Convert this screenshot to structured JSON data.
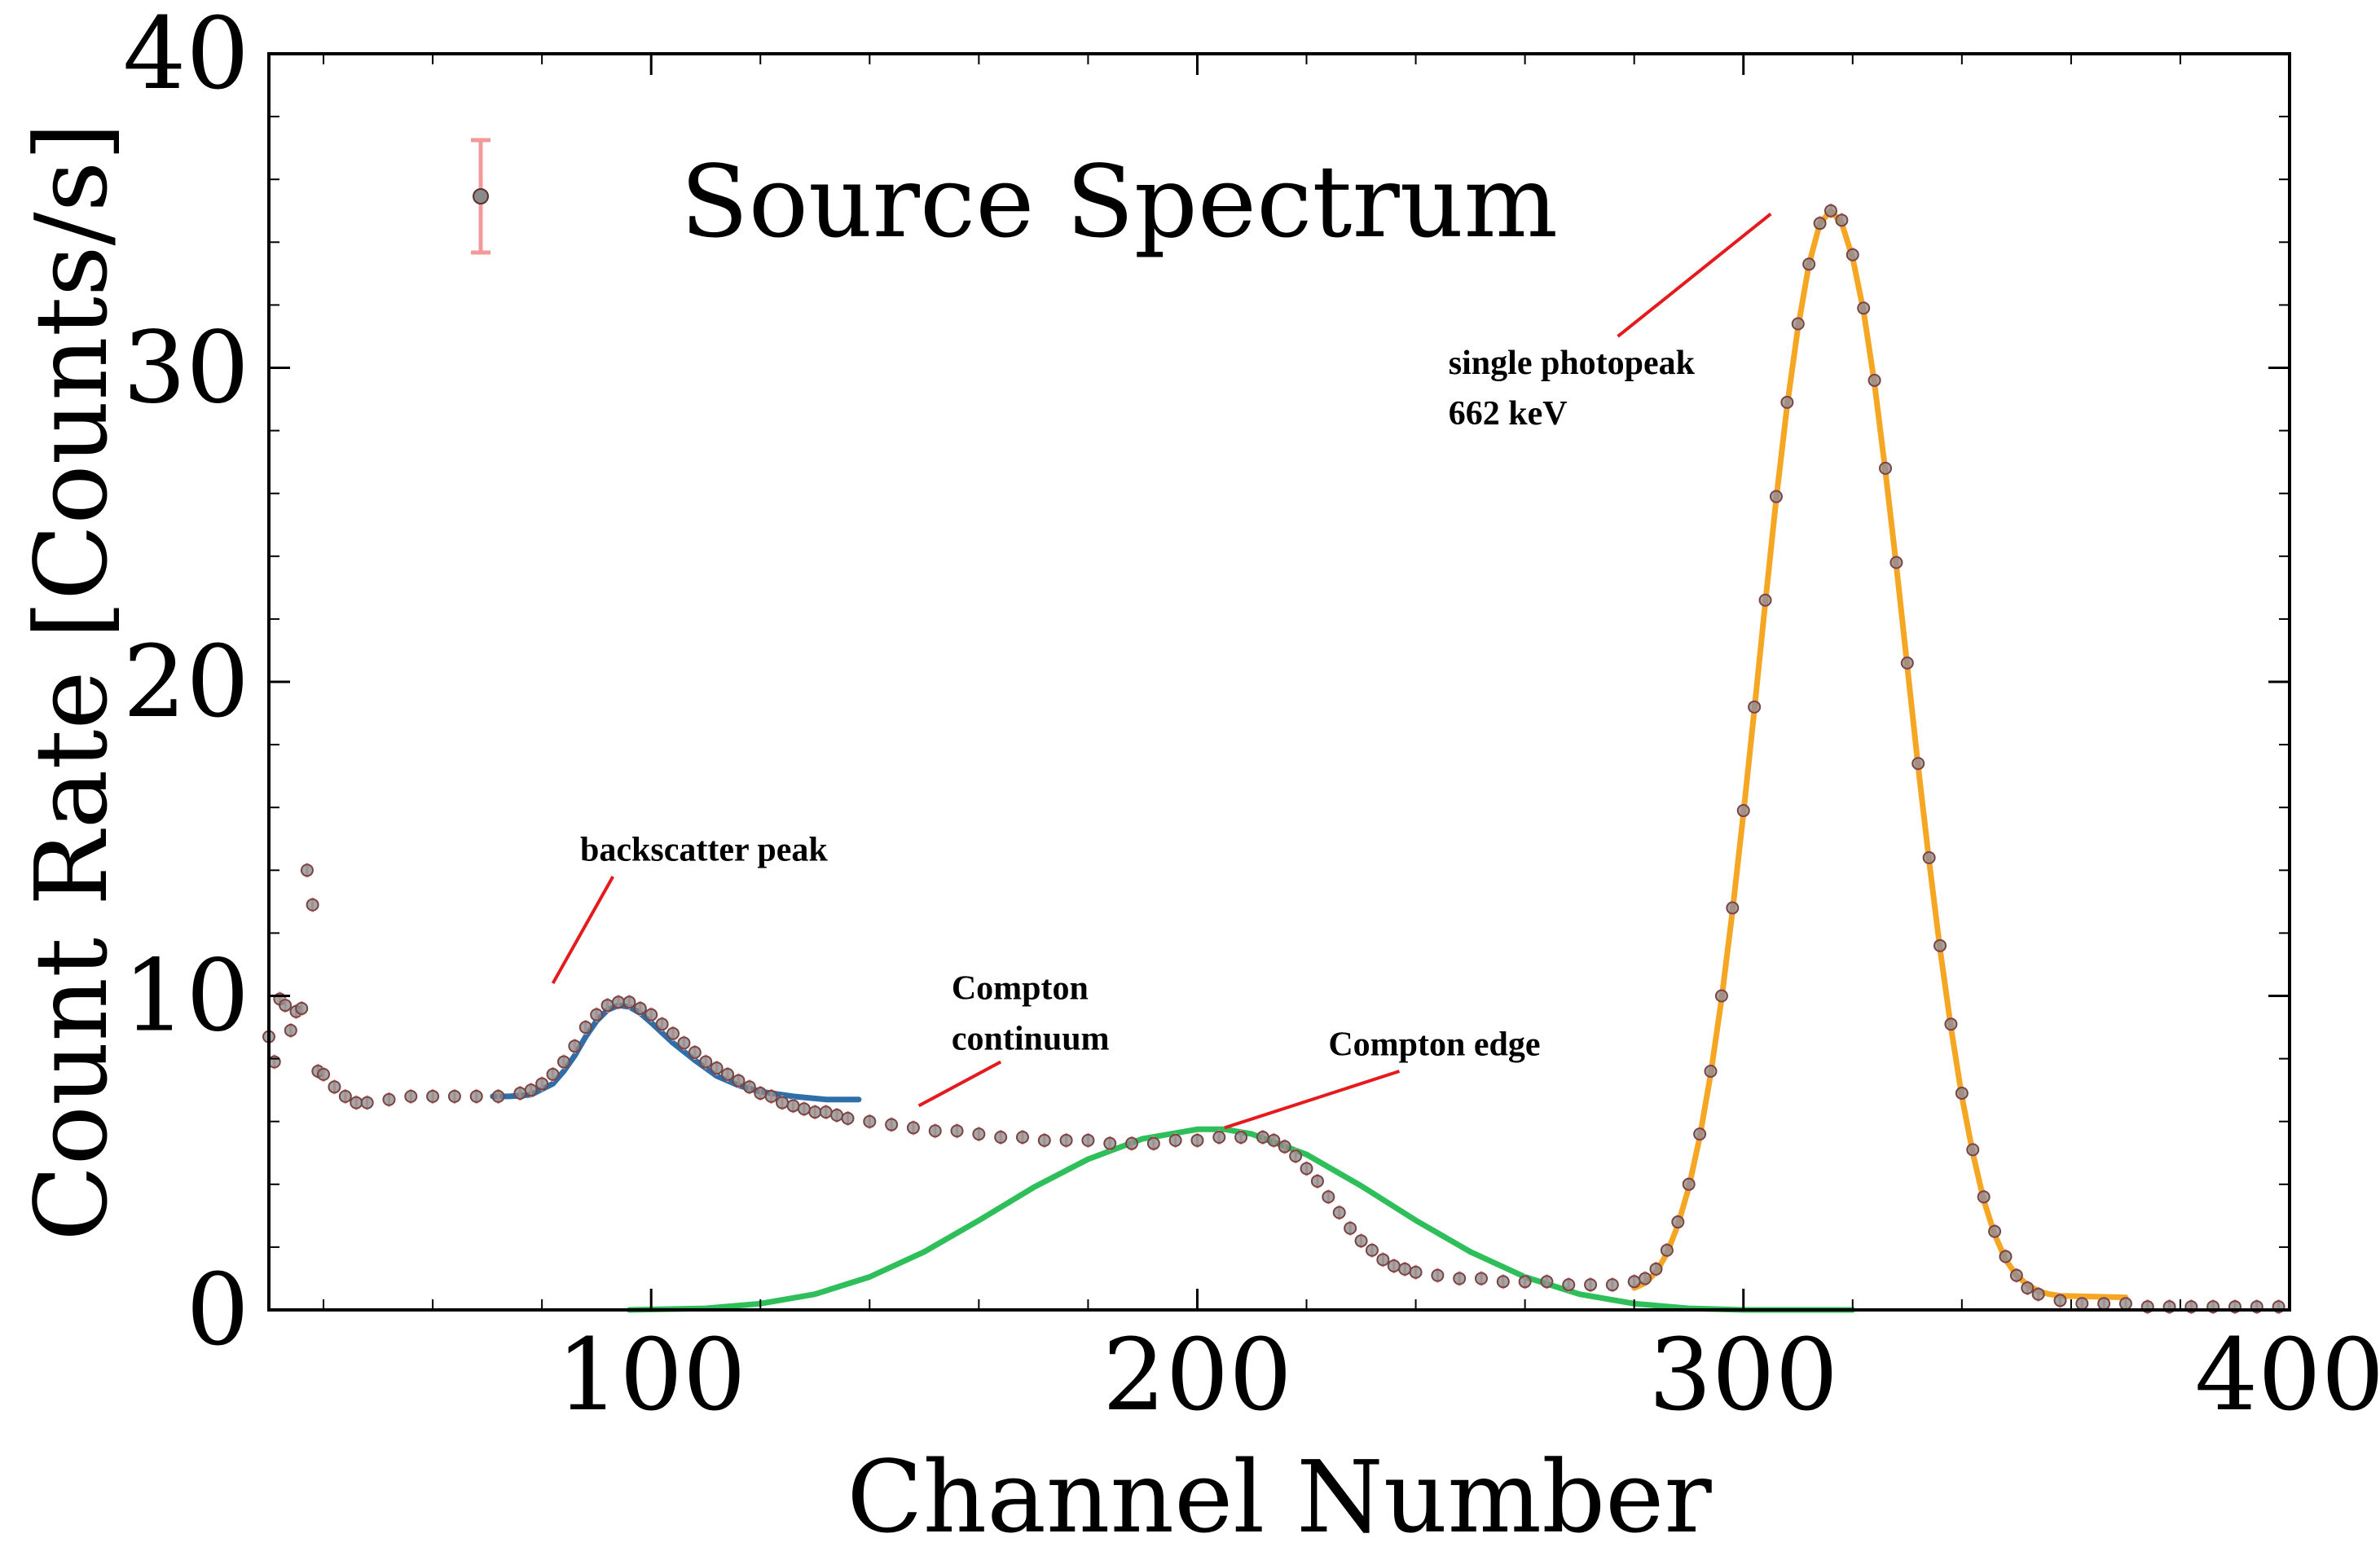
{
  "chart_data": {
    "type": "scatter",
    "xlabel": "Channel Number",
    "ylabel": "Count Rate [Counts/s]",
    "xlim": [
      30,
      400
    ],
    "ylim": [
      0,
      40
    ],
    "xticks": [
      100,
      200,
      300,
      400
    ],
    "yticks": [
      0,
      10,
      20,
      30,
      40
    ],
    "grid": false,
    "legend": {
      "position": "top-left",
      "entries": [
        "Source Spectrum"
      ]
    },
    "series": [
      {
        "name": "Source Spectrum",
        "kind": "errorbar-points",
        "marker_color": "#7a4444",
        "errorbar_color": "#f29a9a",
        "points": [
          [
            30,
            8.7
          ],
          [
            31,
            7.9
          ],
          [
            32,
            9.9
          ],
          [
            33,
            9.7
          ],
          [
            34,
            8.9
          ],
          [
            35,
            9.5
          ],
          [
            36,
            9.6
          ],
          [
            37,
            14.0
          ],
          [
            38,
            12.9
          ],
          [
            39,
            7.6
          ],
          [
            40,
            7.5
          ],
          [
            42,
            7.1
          ],
          [
            44,
            6.8
          ],
          [
            46,
            6.6
          ],
          [
            48,
            6.6
          ],
          [
            52,
            6.7
          ],
          [
            56,
            6.8
          ],
          [
            60,
            6.8
          ],
          [
            64,
            6.8
          ],
          [
            68,
            6.8
          ],
          [
            72,
            6.8
          ],
          [
            76,
            6.9
          ],
          [
            78,
            7.0
          ],
          [
            80,
            7.2
          ],
          [
            82,
            7.5
          ],
          [
            84,
            7.9
          ],
          [
            86,
            8.4
          ],
          [
            88,
            9.0
          ],
          [
            90,
            9.4
          ],
          [
            92,
            9.7
          ],
          [
            94,
            9.8
          ],
          [
            96,
            9.8
          ],
          [
            98,
            9.6
          ],
          [
            100,
            9.4
          ],
          [
            102,
            9.1
          ],
          [
            104,
            8.8
          ],
          [
            106,
            8.5
          ],
          [
            108,
            8.2
          ],
          [
            110,
            7.9
          ],
          [
            112,
            7.7
          ],
          [
            114,
            7.5
          ],
          [
            116,
            7.3
          ],
          [
            118,
            7.1
          ],
          [
            120,
            6.9
          ],
          [
            122,
            6.8
          ],
          [
            124,
            6.6
          ],
          [
            126,
            6.5
          ],
          [
            128,
            6.4
          ],
          [
            130,
            6.3
          ],
          [
            132,
            6.3
          ],
          [
            134,
            6.2
          ],
          [
            136,
            6.1
          ],
          [
            140,
            6.0
          ],
          [
            144,
            5.9
          ],
          [
            148,
            5.8
          ],
          [
            152,
            5.7
          ],
          [
            156,
            5.7
          ],
          [
            160,
            5.6
          ],
          [
            164,
            5.5
          ],
          [
            168,
            5.5
          ],
          [
            172,
            5.4
          ],
          [
            176,
            5.4
          ],
          [
            180,
            5.4
          ],
          [
            184,
            5.3
          ],
          [
            188,
            5.3
          ],
          [
            192,
            5.3
          ],
          [
            196,
            5.4
          ],
          [
            200,
            5.4
          ],
          [
            204,
            5.5
          ],
          [
            208,
            5.5
          ],
          [
            212,
            5.5
          ],
          [
            214,
            5.4
          ],
          [
            216,
            5.2
          ],
          [
            218,
            4.9
          ],
          [
            220,
            4.5
          ],
          [
            222,
            4.1
          ],
          [
            224,
            3.6
          ],
          [
            226,
            3.1
          ],
          [
            228,
            2.6
          ],
          [
            230,
            2.2
          ],
          [
            232,
            1.9
          ],
          [
            234,
            1.6
          ],
          [
            236,
            1.4
          ],
          [
            238,
            1.3
          ],
          [
            240,
            1.2
          ],
          [
            244,
            1.1
          ],
          [
            248,
            1.0
          ],
          [
            252,
            1.0
          ],
          [
            256,
            0.9
          ],
          [
            260,
            0.9
          ],
          [
            264,
            0.9
          ],
          [
            268,
            0.8
          ],
          [
            272,
            0.8
          ],
          [
            276,
            0.8
          ],
          [
            280,
            0.9
          ],
          [
            282,
            1.0
          ],
          [
            284,
            1.3
          ],
          [
            286,
            1.9
          ],
          [
            288,
            2.8
          ],
          [
            290,
            4.0
          ],
          [
            292,
            5.6
          ],
          [
            294,
            7.6
          ],
          [
            296,
            10.0
          ],
          [
            298,
            12.8
          ],
          [
            300,
            15.9
          ],
          [
            302,
            19.2
          ],
          [
            304,
            22.6
          ],
          [
            306,
            25.9
          ],
          [
            308,
            28.9
          ],
          [
            310,
            31.4
          ],
          [
            312,
            33.3
          ],
          [
            314,
            34.6
          ],
          [
            316,
            35.0
          ],
          [
            318,
            34.7
          ],
          [
            320,
            33.6
          ],
          [
            322,
            31.9
          ],
          [
            324,
            29.6
          ],
          [
            326,
            26.8
          ],
          [
            328,
            23.8
          ],
          [
            330,
            20.6
          ],
          [
            332,
            17.4
          ],
          [
            334,
            14.4
          ],
          [
            336,
            11.6
          ],
          [
            338,
            9.1
          ],
          [
            340,
            6.9
          ],
          [
            342,
            5.1
          ],
          [
            344,
            3.6
          ],
          [
            346,
            2.5
          ],
          [
            348,
            1.7
          ],
          [
            350,
            1.1
          ],
          [
            352,
            0.7
          ],
          [
            354,
            0.5
          ],
          [
            358,
            0.3
          ],
          [
            362,
            0.2
          ],
          [
            366,
            0.2
          ],
          [
            370,
            0.2
          ],
          [
            374,
            0.1
          ],
          [
            378,
            0.1
          ],
          [
            382,
            0.1
          ],
          [
            386,
            0.1
          ],
          [
            390,
            0.1
          ],
          [
            394,
            0.1
          ],
          [
            398,
            0.1
          ]
        ]
      },
      {
        "kind": "fit-line",
        "color": "#2f6ea8",
        "points": [
          [
            71,
            6.8
          ],
          [
            74,
            6.8
          ],
          [
            78,
            6.85
          ],
          [
            82,
            7.2
          ],
          [
            84,
            7.6
          ],
          [
            86,
            8.1
          ],
          [
            88,
            8.7
          ],
          [
            90,
            9.2
          ],
          [
            92,
            9.55
          ],
          [
            94,
            9.7
          ],
          [
            96,
            9.65
          ],
          [
            98,
            9.45
          ],
          [
            100,
            9.15
          ],
          [
            104,
            8.5
          ],
          [
            108,
            7.95
          ],
          [
            112,
            7.45
          ],
          [
            116,
            7.15
          ],
          [
            120,
            6.95
          ],
          [
            126,
            6.8
          ],
          [
            132,
            6.7
          ],
          [
            138,
            6.7
          ]
        ]
      },
      {
        "kind": "fit-line",
        "color": "#2fbf5a",
        "points": [
          [
            96,
            0.0
          ],
          [
            110,
            0.05
          ],
          [
            120,
            0.2
          ],
          [
            130,
            0.5
          ],
          [
            140,
            1.05
          ],
          [
            150,
            1.85
          ],
          [
            160,
            2.85
          ],
          [
            170,
            3.9
          ],
          [
            180,
            4.8
          ],
          [
            190,
            5.45
          ],
          [
            200,
            5.75
          ],
          [
            205,
            5.75
          ],
          [
            210,
            5.6
          ],
          [
            220,
            4.95
          ],
          [
            230,
            3.95
          ],
          [
            240,
            2.85
          ],
          [
            250,
            1.85
          ],
          [
            260,
            1.05
          ],
          [
            270,
            0.5
          ],
          [
            280,
            0.2
          ],
          [
            290,
            0.05
          ],
          [
            300,
            0.0
          ],
          [
            320,
            0.0
          ]
        ]
      },
      {
        "kind": "fit-line",
        "color": "#f5a623",
        "points": [
          [
            280,
            0.7
          ],
          [
            282,
            0.85
          ],
          [
            284,
            1.2
          ],
          [
            286,
            1.8
          ],
          [
            288,
            2.7
          ],
          [
            290,
            3.9
          ],
          [
            292,
            5.5
          ],
          [
            294,
            7.5
          ],
          [
            296,
            9.9
          ],
          [
            298,
            12.7
          ],
          [
            300,
            15.8
          ],
          [
            302,
            19.1
          ],
          [
            304,
            22.5
          ],
          [
            306,
            25.8
          ],
          [
            308,
            28.8
          ],
          [
            310,
            31.3
          ],
          [
            312,
            33.3
          ],
          [
            314,
            34.6
          ],
          [
            316,
            35.0
          ],
          [
            318,
            34.6
          ],
          [
            320,
            33.5
          ],
          [
            322,
            31.8
          ],
          [
            324,
            29.5
          ],
          [
            326,
            26.7
          ],
          [
            328,
            23.7
          ],
          [
            330,
            20.5
          ],
          [
            332,
            17.3
          ],
          [
            334,
            14.3
          ],
          [
            336,
            11.5
          ],
          [
            338,
            9.0
          ],
          [
            340,
            6.8
          ],
          [
            342,
            5.0
          ],
          [
            344,
            3.5
          ],
          [
            346,
            2.4
          ],
          [
            348,
            1.6
          ],
          [
            350,
            1.1
          ],
          [
            352,
            0.8
          ],
          [
            354,
            0.6
          ],
          [
            356,
            0.5
          ],
          [
            358,
            0.45
          ],
          [
            370,
            0.4
          ]
        ]
      }
    ],
    "annotations": [
      {
        "lines": [
          "backscatter peak"
        ],
        "text_at": [
          87,
          14.3
        ],
        "arrow_from": [
          93,
          13.8
        ],
        "arrow_to": [
          82,
          10.4
        ]
      },
      {
        "lines": [
          "Compton",
          "continuum"
        ],
        "text_at": [
          155,
          9.9
        ],
        "arrow_from": [
          164,
          7.9
        ],
        "arrow_to": [
          149,
          6.5
        ]
      },
      {
        "lines": [
          "Compton edge"
        ],
        "text_at": [
          224,
          8.1
        ],
        "arrow_from": [
          237,
          7.6
        ],
        "arrow_to": [
          205,
          5.8
        ]
      },
      {
        "lines": [
          "single photopeak",
          "662 keV"
        ],
        "text_at": [
          246,
          29.8
        ],
        "arrow_from": [
          277,
          31.0
        ],
        "arrow_to": [
          305,
          34.9
        ]
      }
    ]
  }
}
